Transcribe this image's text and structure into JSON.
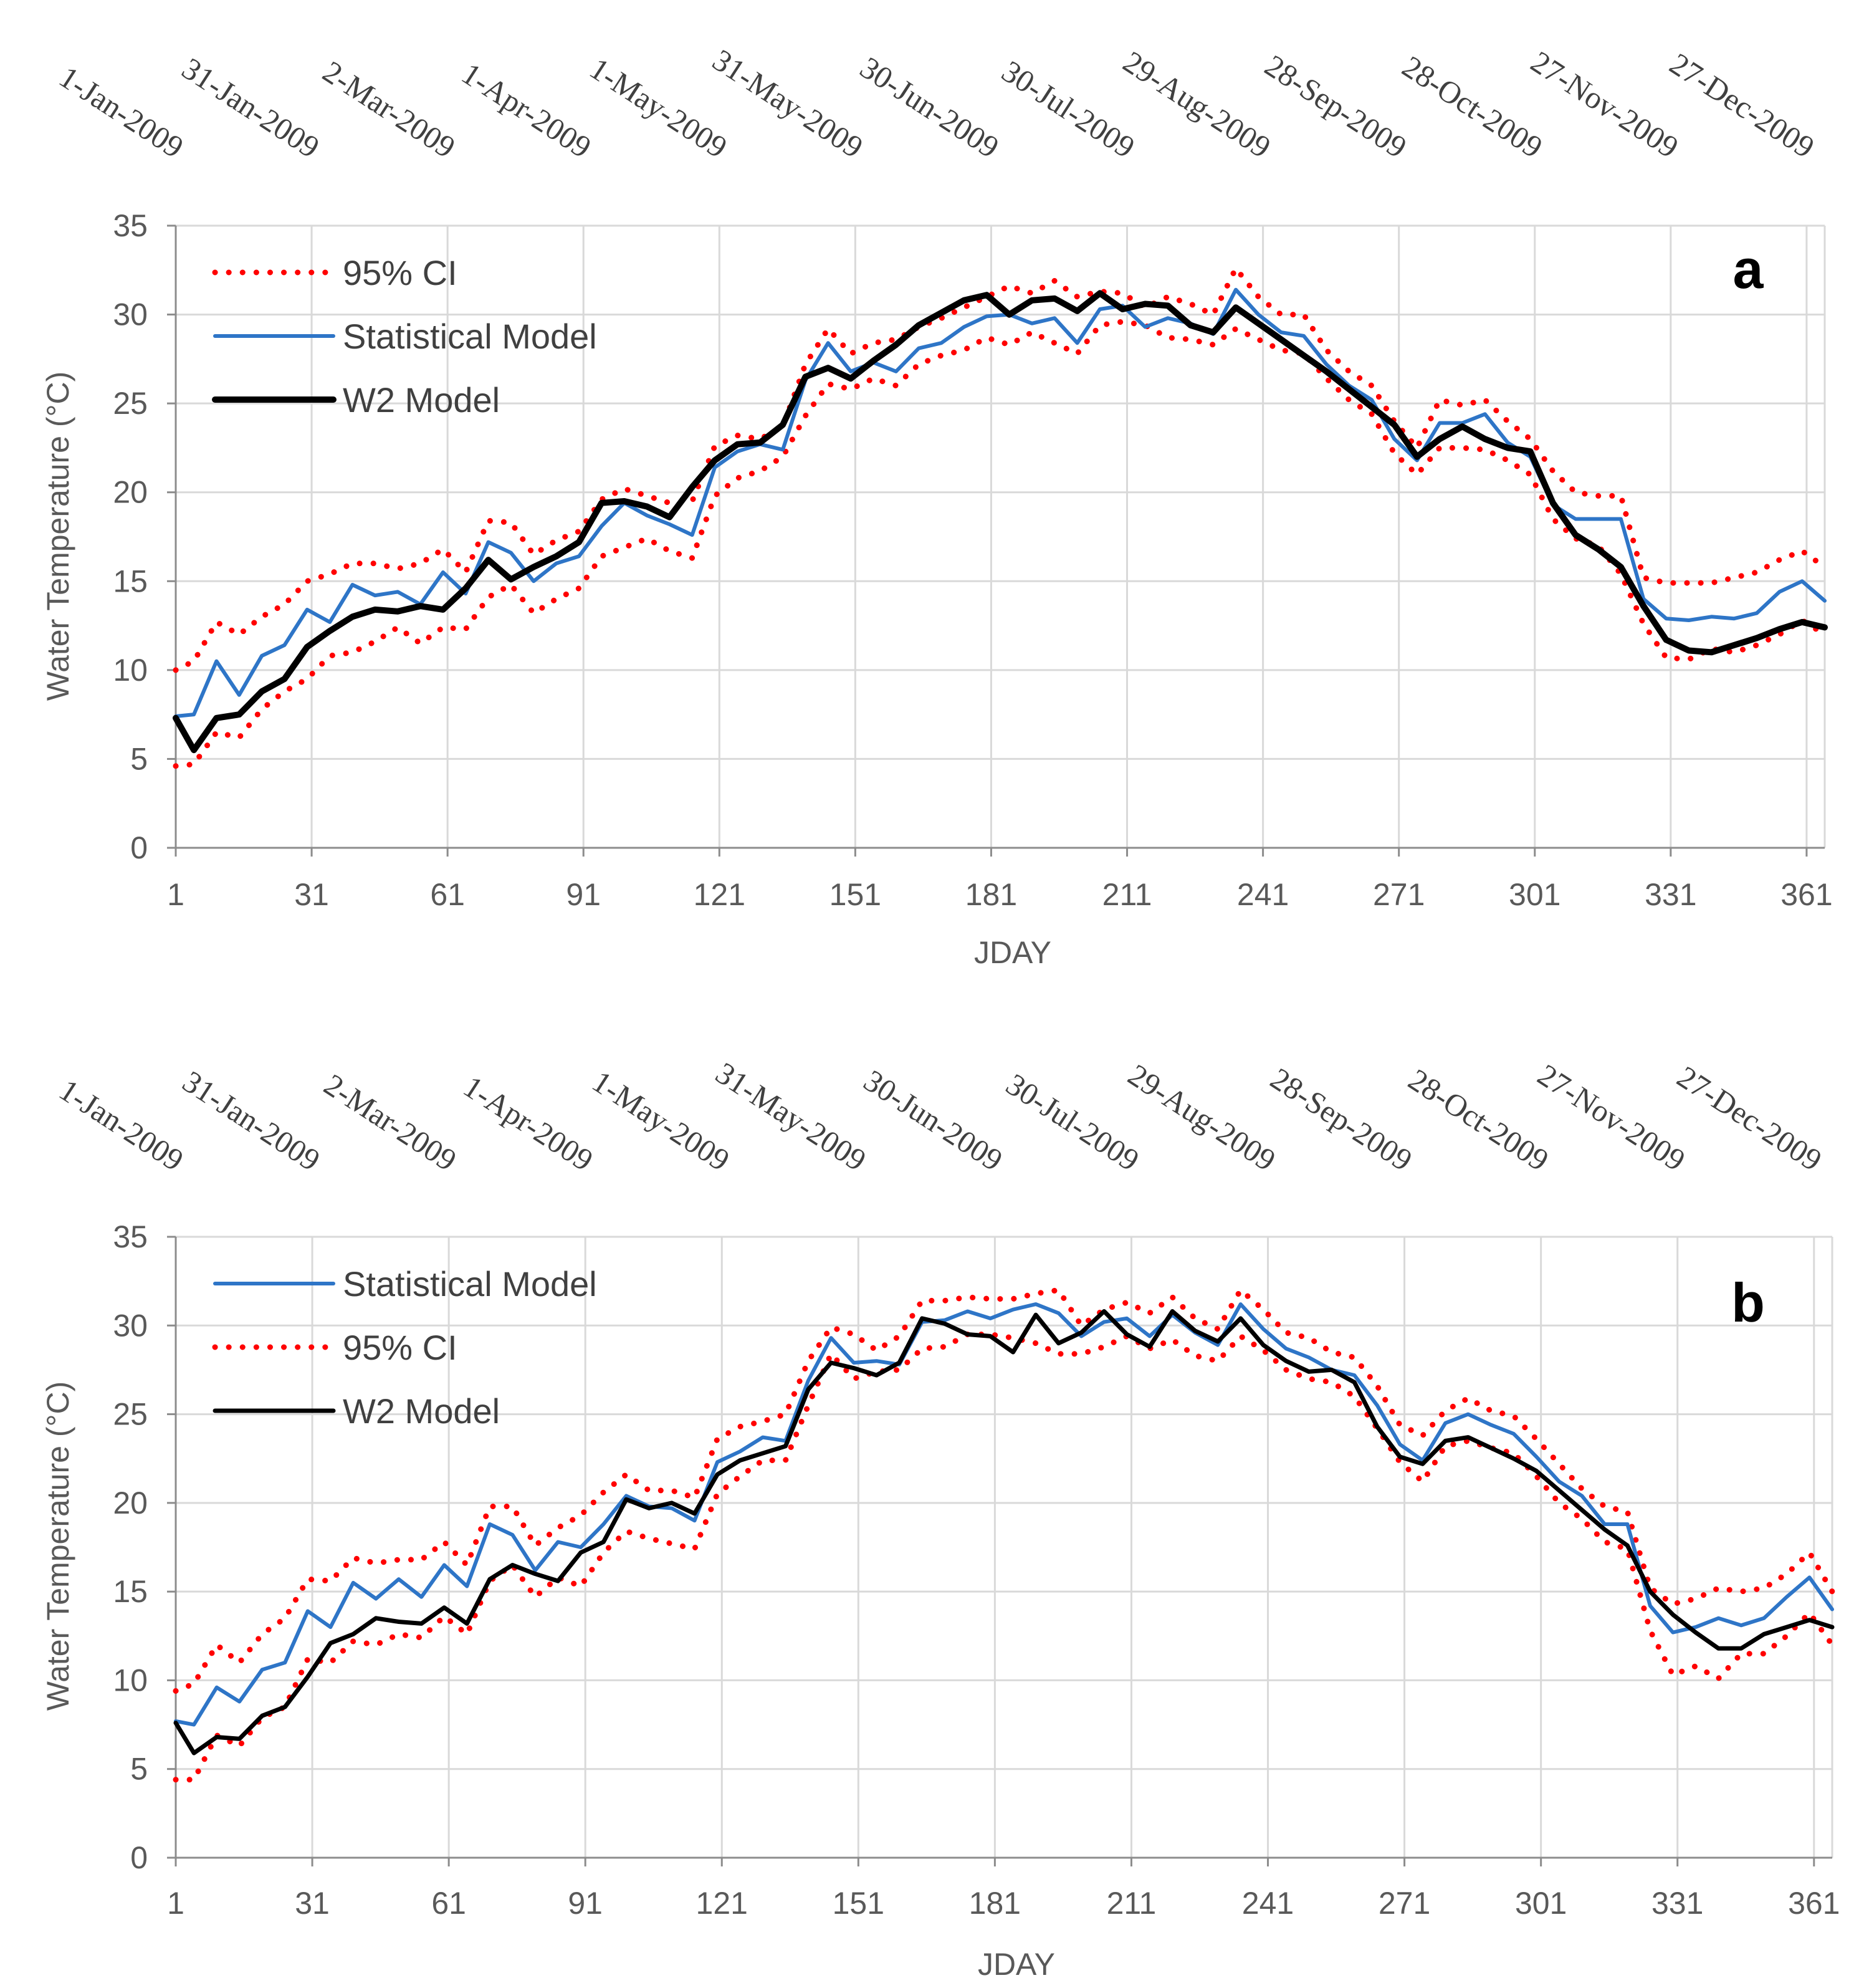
{
  "chart_data": [
    {
      "type": "line",
      "panel_label": "a",
      "xlabel": "JDAY",
      "ylabel": "Water Temperature (°C)",
      "xlim": [
        1,
        365
      ],
      "ylim": [
        0,
        35
      ],
      "xticks": [
        1,
        31,
        61,
        91,
        121,
        151,
        181,
        211,
        241,
        271,
        301,
        331,
        361
      ],
      "yticks": [
        0,
        5,
        10,
        15,
        20,
        25,
        30,
        35
      ],
      "date_labels": [
        "1-Jan-2009",
        "31-Jan-2009",
        "2-Mar-2009",
        "1-Apr-2009",
        "1-May-2009",
        "31-May-2009",
        "30-Jun-2009",
        "30-Jul-2009",
        "29-Aug-2009",
        "28-Sep-2009",
        "28-Oct-2009",
        "27-Nov-2009",
        "27-Dec-2009"
      ],
      "grid": true,
      "legend_position": "top-left",
      "legend_order": [
        "95% CI",
        "Statistical Model",
        "W2 Model"
      ],
      "x": [
        1,
        5,
        10,
        15,
        20,
        25,
        30,
        35,
        40,
        45,
        50,
        55,
        60,
        65,
        70,
        75,
        80,
        85,
        90,
        95,
        100,
        105,
        110,
        115,
        120,
        125,
        130,
        135,
        140,
        145,
        150,
        155,
        160,
        165,
        170,
        175,
        180,
        185,
        190,
        195,
        200,
        205,
        210,
        215,
        220,
        225,
        230,
        235,
        240,
        245,
        250,
        255,
        260,
        265,
        270,
        275,
        280,
        285,
        290,
        295,
        300,
        305,
        310,
        315,
        320,
        325,
        330,
        335,
        340,
        345,
        350,
        355,
        360,
        365
      ],
      "series": [
        {
          "name": "95% CI",
          "role": "upper",
          "color": "#ff0000",
          "style": "dotted",
          "values": [
            10.0,
            10.5,
            12.7,
            12.0,
            13.0,
            13.7,
            15.0,
            15.4,
            16.0,
            16.0,
            15.7,
            16.0,
            16.8,
            15.5,
            18.4,
            18.3,
            16.5,
            17.3,
            17.8,
            19.6,
            20.2,
            19.8,
            19.4,
            19.5,
            22.6,
            23.2,
            23.0,
            23.7,
            27.2,
            29.2,
            27.8,
            28.4,
            28.6,
            29.3,
            29.8,
            30.4,
            31.0,
            31.6,
            31.2,
            31.9,
            31.0,
            31.3,
            31.2,
            30.4,
            31.0,
            30.6,
            30.0,
            32.6,
            31.0,
            30.0,
            30.0,
            28.0,
            26.8,
            26.0,
            24.0,
            22.5,
            25.2,
            24.9,
            25.2,
            24.0,
            23.0,
            21.2,
            20.0,
            19.8,
            19.8,
            15.2,
            14.9,
            14.9,
            14.9,
            15.2,
            15.5,
            16.2,
            16.7,
            15.8
          ]
        },
        {
          "name": "95% CI",
          "role": "lower",
          "color": "#ff0000",
          "style": "dotted",
          "values": [
            4.6,
            4.7,
            6.5,
            6.2,
            7.8,
            8.8,
            9.5,
            10.8,
            11.0,
            11.6,
            12.4,
            11.5,
            12.4,
            12.3,
            14.1,
            14.8,
            13.2,
            14.0,
            14.6,
            16.4,
            16.9,
            17.4,
            16.7,
            16.3,
            19.8,
            20.8,
            21.2,
            22.0,
            24.3,
            26.1,
            25.8,
            26.4,
            26.0,
            27.2,
            27.7,
            28.0,
            28.7,
            28.3,
            29.0,
            28.4,
            27.8,
            29.4,
            29.6,
            29.4,
            28.7,
            28.6,
            28.3,
            29.2,
            28.6,
            28.0,
            27.8,
            26.4,
            25.2,
            24.4,
            22.2,
            21.0,
            22.5,
            22.5,
            22.4,
            21.8,
            21.0,
            18.5,
            17.4,
            17.0,
            15.4,
            12.6,
            10.7,
            10.6,
            11.2,
            11.0,
            11.4,
            12.0,
            12.8,
            12.0
          ]
        },
        {
          "name": "Statistical Model",
          "color": "#2e75c7",
          "style": "solid",
          "values": [
            7.4,
            7.5,
            10.5,
            8.6,
            10.8,
            11.4,
            13.4,
            12.7,
            14.8,
            14.2,
            14.4,
            13.7,
            15.5,
            14.3,
            17.2,
            16.6,
            15.0,
            16.0,
            16.4,
            18.1,
            19.4,
            18.7,
            18.2,
            17.6,
            21.4,
            22.3,
            22.7,
            22.4,
            26.3,
            28.4,
            26.8,
            27.3,
            26.8,
            28.1,
            28.4,
            29.3,
            29.9,
            30.0,
            29.5,
            29.8,
            28.4,
            30.3,
            30.5,
            29.3,
            29.8,
            29.5,
            28.9,
            31.4,
            30.0,
            29.0,
            28.8,
            27.2,
            26.0,
            25.2,
            23.0,
            21.8,
            23.9,
            23.9,
            24.4,
            22.8,
            22.0,
            19.3,
            18.5,
            18.5,
            18.5,
            14.0,
            12.9,
            12.8,
            13.0,
            12.9,
            13.2,
            14.4,
            15.0,
            13.9
          ]
        },
        {
          "name": "W2 Model",
          "color": "#000000",
          "style": "solid",
          "values": [
            7.3,
            5.5,
            7.3,
            7.5,
            8.8,
            9.5,
            11.3,
            12.2,
            13.0,
            13.4,
            13.3,
            13.6,
            13.4,
            14.6,
            16.2,
            15.1,
            15.8,
            16.4,
            17.2,
            19.4,
            19.5,
            19.2,
            18.6,
            20.3,
            21.8,
            22.7,
            22.8,
            23.8,
            26.5,
            27.0,
            26.4,
            27.4,
            28.3,
            29.4,
            30.1,
            30.8,
            31.1,
            30.0,
            30.8,
            30.9,
            30.2,
            31.2,
            30.3,
            30.6,
            30.5,
            29.4,
            29.0,
            30.4,
            29.5,
            28.6,
            27.7,
            26.8,
            25.8,
            24.8,
            23.8,
            22.0,
            23.0,
            23.7,
            23.0,
            22.5,
            22.3,
            19.4,
            17.6,
            16.8,
            15.8,
            13.6,
            11.7,
            11.1,
            11.0,
            11.4,
            11.8,
            12.3,
            12.7,
            12.4
          ]
        }
      ]
    },
    {
      "type": "line",
      "panel_label": "b",
      "xlabel": "JDAY",
      "ylabel": "Water Temperature (°C)",
      "xlim": [
        1,
        365
      ],
      "ylim": [
        0,
        35
      ],
      "xticks": [
        1,
        31,
        61,
        91,
        121,
        151,
        181,
        211,
        241,
        271,
        301,
        331,
        361
      ],
      "yticks": [
        0,
        5,
        10,
        15,
        20,
        25,
        30,
        35
      ],
      "date_labels": [
        "1-Jan-2009",
        "31-Jan-2009",
        "2-Mar-2009",
        "1-Apr-2009",
        "1-May-2009",
        "31-May-2009",
        "30-Jun-2009",
        "30-Jul-2009",
        "29-Aug-2009",
        "28-Sep-2009",
        "28-Oct-2009",
        "27-Nov-2009",
        "27-Dec-2009"
      ],
      "grid": true,
      "legend_position": "top-left",
      "legend_order": [
        "Statistical Model",
        "95% CI",
        "W2 Model"
      ],
      "x": [
        1,
        5,
        10,
        15,
        20,
        25,
        30,
        35,
        40,
        45,
        50,
        55,
        60,
        65,
        70,
        75,
        80,
        85,
        90,
        95,
        100,
        105,
        110,
        115,
        120,
        125,
        130,
        135,
        140,
        145,
        150,
        155,
        160,
        165,
        170,
        175,
        180,
        185,
        190,
        195,
        200,
        205,
        210,
        215,
        220,
        225,
        230,
        235,
        240,
        245,
        250,
        255,
        260,
        265,
        270,
        275,
        280,
        285,
        290,
        295,
        300,
        305,
        310,
        315,
        320,
        325,
        330,
        335,
        340,
        345,
        350,
        355,
        360,
        365
      ],
      "series": [
        {
          "name": "Statistical Model",
          "color": "#2e75c7",
          "style": "solid",
          "values": [
            7.7,
            7.5,
            9.6,
            8.8,
            10.6,
            11.0,
            13.9,
            13.0,
            15.5,
            14.6,
            15.7,
            14.7,
            16.5,
            15.3,
            18.8,
            18.2,
            16.2,
            17.8,
            17.5,
            18.8,
            20.4,
            19.8,
            19.7,
            19.0,
            22.3,
            22.9,
            23.7,
            23.5,
            26.9,
            29.3,
            27.9,
            28.0,
            27.8,
            30.2,
            30.3,
            30.8,
            30.4,
            30.9,
            31.2,
            30.7,
            29.4,
            30.2,
            30.4,
            29.4,
            30.6,
            29.6,
            28.9,
            31.2,
            29.8,
            28.7,
            28.2,
            27.5,
            27.2,
            25.5,
            23.3,
            22.4,
            24.5,
            25.0,
            24.4,
            23.9,
            22.6,
            21.2,
            20.4,
            18.8,
            18.8,
            14.2,
            12.7,
            13.0,
            13.5,
            13.1,
            13.5,
            14.7,
            15.8,
            14.0
          ]
        },
        {
          "name": "95% CI",
          "role": "upper",
          "color": "#ff0000",
          "style": "dotted",
          "values": [
            9.4,
            9.8,
            12.0,
            11.0,
            12.6,
            13.5,
            15.7,
            15.6,
            16.9,
            16.6,
            16.8,
            16.8,
            17.8,
            16.5,
            19.8,
            19.8,
            17.6,
            18.6,
            19.3,
            20.6,
            21.6,
            20.7,
            20.7,
            20.3,
            23.6,
            24.3,
            24.6,
            25.0,
            28.0,
            29.9,
            29.5,
            28.6,
            29.4,
            31.4,
            31.4,
            31.6,
            31.5,
            31.5,
            31.8,
            32.0,
            30.0,
            30.9,
            31.3,
            30.7,
            31.6,
            30.4,
            29.8,
            32.0,
            30.9,
            29.6,
            29.3,
            28.5,
            28.2,
            26.6,
            24.4,
            23.8,
            25.2,
            25.9,
            25.2,
            24.9,
            23.6,
            22.2,
            20.8,
            19.8,
            19.5,
            15.2,
            14.3,
            14.6,
            15.2,
            15.0,
            15.2,
            16.0,
            17.2,
            15.0
          ]
        },
        {
          "name": "95% CI",
          "role": "lower",
          "color": "#ff0000",
          "style": "dotted",
          "values": [
            4.4,
            4.4,
            6.9,
            6.3,
            7.9,
            8.5,
            11.2,
            11.0,
            12.2,
            12.0,
            12.6,
            12.4,
            13.6,
            12.6,
            15.6,
            16.5,
            14.7,
            15.8,
            15.3,
            17.2,
            18.4,
            18.0,
            17.7,
            17.4,
            20.5,
            21.5,
            22.4,
            22.4,
            25.5,
            28.4,
            27.0,
            27.4,
            27.5,
            28.7,
            28.8,
            29.5,
            29.5,
            29.3,
            29.0,
            28.4,
            28.4,
            28.8,
            29.4,
            28.7,
            29.2,
            28.3,
            28.0,
            29.4,
            28.6,
            27.5,
            27.0,
            26.8,
            26.0,
            24.2,
            22.3,
            21.2,
            23.2,
            23.5,
            23.1,
            22.8,
            21.5,
            20.0,
            19.1,
            17.8,
            17.4,
            12.8,
            10.3,
            10.8,
            10.1,
            11.5,
            11.5,
            12.5,
            13.8,
            12.0
          ]
        },
        {
          "name": "W2 Model",
          "color": "#000000",
          "style": "solid",
          "values": [
            7.6,
            5.9,
            6.8,
            6.7,
            8.0,
            8.5,
            10.2,
            12.1,
            12.6,
            13.5,
            13.3,
            13.2,
            14.1,
            13.2,
            15.7,
            16.5,
            16.0,
            15.6,
            17.2,
            17.8,
            20.2,
            19.7,
            20.0,
            19.4,
            21.6,
            22.4,
            22.8,
            23.2,
            26.4,
            27.9,
            27.6,
            27.2,
            27.9,
            30.4,
            30.1,
            29.5,
            29.4,
            28.5,
            30.6,
            29.0,
            29.6,
            30.8,
            29.5,
            28.8,
            30.8,
            29.7,
            29.1,
            30.4,
            28.9,
            28.0,
            27.4,
            27.5,
            26.8,
            24.3,
            22.6,
            22.2,
            23.5,
            23.7,
            23.1,
            22.5,
            21.8,
            20.7,
            19.6,
            18.5,
            17.6,
            15.0,
            13.7,
            12.7,
            11.8,
            11.8,
            12.6,
            13.0,
            13.4,
            13.0
          ]
        }
      ]
    }
  ]
}
